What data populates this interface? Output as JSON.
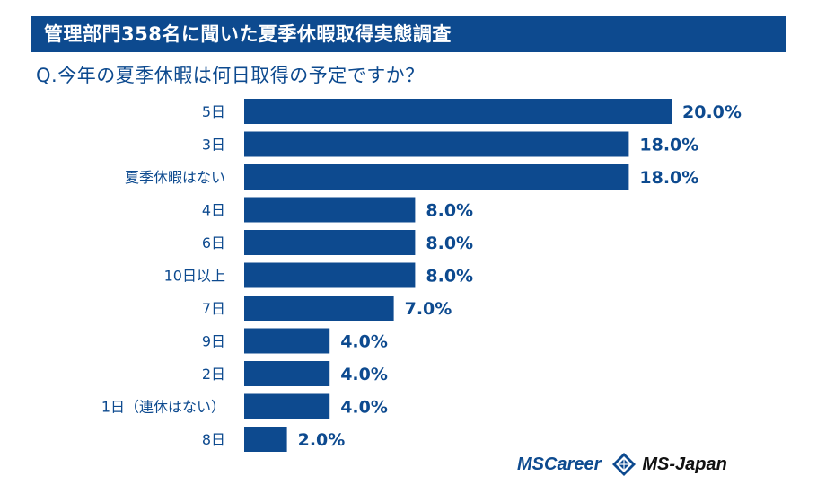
{
  "header": {
    "title": "管理部門358名に聞いた夏季休暇取得実態調査",
    "question": "Q.今年の夏季休暇は何日取得の予定ですか？"
  },
  "colors": {
    "bar": "#0d4a8f",
    "title_bg": "#0d4a8f",
    "text": "#0d4a8f"
  },
  "chart_data": {
    "type": "bar",
    "orientation": "horizontal",
    "title": "Q.今年の夏季休暇は何日取得の予定ですか？",
    "unit": "%",
    "categories": [
      "5日",
      "3日",
      "夏季休暇はない",
      "4日",
      "6日",
      "10日以上",
      "7日",
      "9日",
      "2日",
      "1日（連休はない）",
      "8日"
    ],
    "values": [
      20.0,
      18.0,
      18.0,
      8.0,
      8.0,
      8.0,
      7.0,
      4.0,
      4.0,
      4.0,
      2.0
    ],
    "value_labels": [
      "20.0%",
      "18.0%",
      "18.0%",
      "8.0%",
      "8.0%",
      "8.0%",
      "7.0%",
      "4.0%",
      "4.0%",
      "4.0%",
      "2.0%"
    ],
    "xlim": [
      0,
      20
    ],
    "grid": false,
    "axis_visible": false
  },
  "footer": {
    "logo_mscareer": "MSCareer",
    "logo_msjapan": "MS-Japan",
    "logo_icon": "ms-japan-diamond-icon"
  }
}
